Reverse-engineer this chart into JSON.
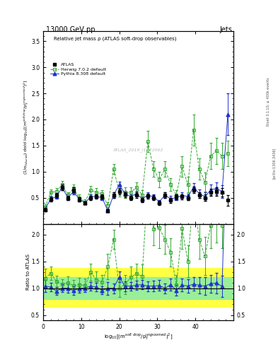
{
  "title_top": "13000 GeV pp",
  "title_right": "Jets",
  "plot_title": "Relative jet mass ρ (ATLAS soft-drop observables)",
  "ylabel_main": "(1/σ$_{fiducial}$) dσ/d log$_{10}$[(m$^{soft drop}$/p$_T^{ungroomed}$)$^2$]",
  "ylabel_ratio": "Ratio to ATLAS",
  "xlabel": "log$_{10}$[(m$^{soft\\ drop}$/p$_T^{ungroomed}$)$^2$]",
  "right_label": "Rivet 3.1.10; ≥ 400k events",
  "arxiv_label": "[arXiv:1306.3436]",
  "watermark": "ATLAS_2019_I1772062",
  "atlas_x": [
    0.5,
    2.0,
    3.5,
    5.0,
    6.5,
    8.0,
    9.5,
    11.0,
    12.5,
    14.0,
    15.5,
    17.0,
    18.5,
    20.0,
    21.5,
    23.0,
    24.5,
    26.0,
    27.5,
    29.0,
    30.5,
    32.0,
    33.5,
    35.0,
    36.5,
    38.0,
    39.5,
    41.0,
    42.5,
    44.0,
    45.5,
    47.0,
    48.5
  ],
  "atlas_y": [
    0.27,
    0.47,
    0.55,
    0.7,
    0.5,
    0.65,
    0.47,
    0.4,
    0.5,
    0.52,
    0.52,
    0.25,
    0.55,
    0.62,
    0.56,
    0.5,
    0.55,
    0.45,
    0.53,
    0.5,
    0.4,
    0.55,
    0.45,
    0.52,
    0.52,
    0.5,
    0.65,
    0.55,
    0.5,
    0.6,
    0.62,
    0.6,
    0.45
  ],
  "atlas_yerr": [
    0.03,
    0.04,
    0.04,
    0.05,
    0.04,
    0.05,
    0.04,
    0.03,
    0.04,
    0.04,
    0.04,
    0.03,
    0.05,
    0.05,
    0.05,
    0.04,
    0.05,
    0.04,
    0.05,
    0.05,
    0.04,
    0.05,
    0.05,
    0.05,
    0.05,
    0.05,
    0.06,
    0.06,
    0.06,
    0.07,
    0.08,
    0.08,
    0.1
  ],
  "herwig_x": [
    0.5,
    2.0,
    3.5,
    5.0,
    6.5,
    8.0,
    9.5,
    11.0,
    12.5,
    14.0,
    15.5,
    17.0,
    18.5,
    20.0,
    21.5,
    23.0,
    24.5,
    26.0,
    27.5,
    29.0,
    30.5,
    32.0,
    33.5,
    35.0,
    36.5,
    38.0,
    39.5,
    41.0,
    42.5,
    44.0,
    45.5,
    47.0,
    48.5
  ],
  "herwig_y": [
    0.32,
    0.6,
    0.62,
    0.75,
    0.55,
    0.68,
    0.5,
    0.42,
    0.65,
    0.6,
    0.58,
    0.35,
    1.05,
    0.62,
    0.6,
    0.6,
    0.7,
    0.55,
    1.58,
    1.05,
    0.85,
    1.05,
    0.75,
    0.55,
    1.1,
    0.75,
    1.8,
    1.05,
    0.8,
    1.3,
    1.4,
    1.3,
    1.35
  ],
  "herwig_yerr": [
    0.05,
    0.06,
    0.06,
    0.07,
    0.06,
    0.07,
    0.06,
    0.05,
    0.08,
    0.08,
    0.07,
    0.06,
    0.1,
    0.1,
    0.1,
    0.1,
    0.1,
    0.1,
    0.2,
    0.15,
    0.15,
    0.15,
    0.12,
    0.1,
    0.2,
    0.15,
    0.3,
    0.2,
    0.18,
    0.25,
    0.25,
    0.25,
    0.25
  ],
  "pythia_x": [
    0.5,
    2.0,
    3.5,
    5.0,
    6.5,
    8.0,
    9.5,
    11.0,
    12.5,
    14.0,
    15.5,
    17.0,
    18.5,
    20.0,
    21.5,
    23.0,
    24.5,
    26.0,
    27.5,
    29.0,
    30.5,
    32.0,
    33.5,
    35.0,
    36.5,
    38.0,
    39.5,
    41.0,
    42.5,
    44.0,
    45.5,
    47.0,
    48.5
  ],
  "pythia_y": [
    0.28,
    0.48,
    0.52,
    0.7,
    0.5,
    0.62,
    0.47,
    0.4,
    0.52,
    0.53,
    0.5,
    0.25,
    0.55,
    0.75,
    0.58,
    0.52,
    0.58,
    0.48,
    0.55,
    0.52,
    0.42,
    0.55,
    0.48,
    0.5,
    0.55,
    0.52,
    0.7,
    0.58,
    0.52,
    0.65,
    0.68,
    0.62,
    2.1
  ],
  "pythia_yerr": [
    0.03,
    0.04,
    0.04,
    0.05,
    0.04,
    0.05,
    0.04,
    0.03,
    0.04,
    0.04,
    0.04,
    0.03,
    0.05,
    0.06,
    0.05,
    0.04,
    0.05,
    0.04,
    0.05,
    0.05,
    0.04,
    0.05,
    0.05,
    0.05,
    0.06,
    0.06,
    0.08,
    0.08,
    0.08,
    0.1,
    0.12,
    0.12,
    0.4
  ],
  "yellow_band_lo": 0.65,
  "yellow_band_hi": 1.38,
  "green_band_lo": 0.8,
  "green_band_hi": 1.2,
  "xlim": [
    0,
    50
  ],
  "ylim_main": [
    0.0,
    3.7
  ],
  "ylim_ratio": [
    0.4,
    2.2
  ],
  "yticks_main": [
    0.5,
    1.0,
    1.5,
    2.0,
    2.5,
    3.0,
    3.5
  ],
  "yticks_ratio": [
    0.5,
    1.0,
    1.5,
    2.0
  ],
  "xticks": [
    0,
    10,
    20,
    30,
    40
  ],
  "color_atlas": "#000000",
  "color_herwig": "#33aa33",
  "color_pythia": "#2233cc",
  "color_yellow": "#ffff44",
  "color_green": "#99ee99",
  "bg_color": "#ffffff"
}
